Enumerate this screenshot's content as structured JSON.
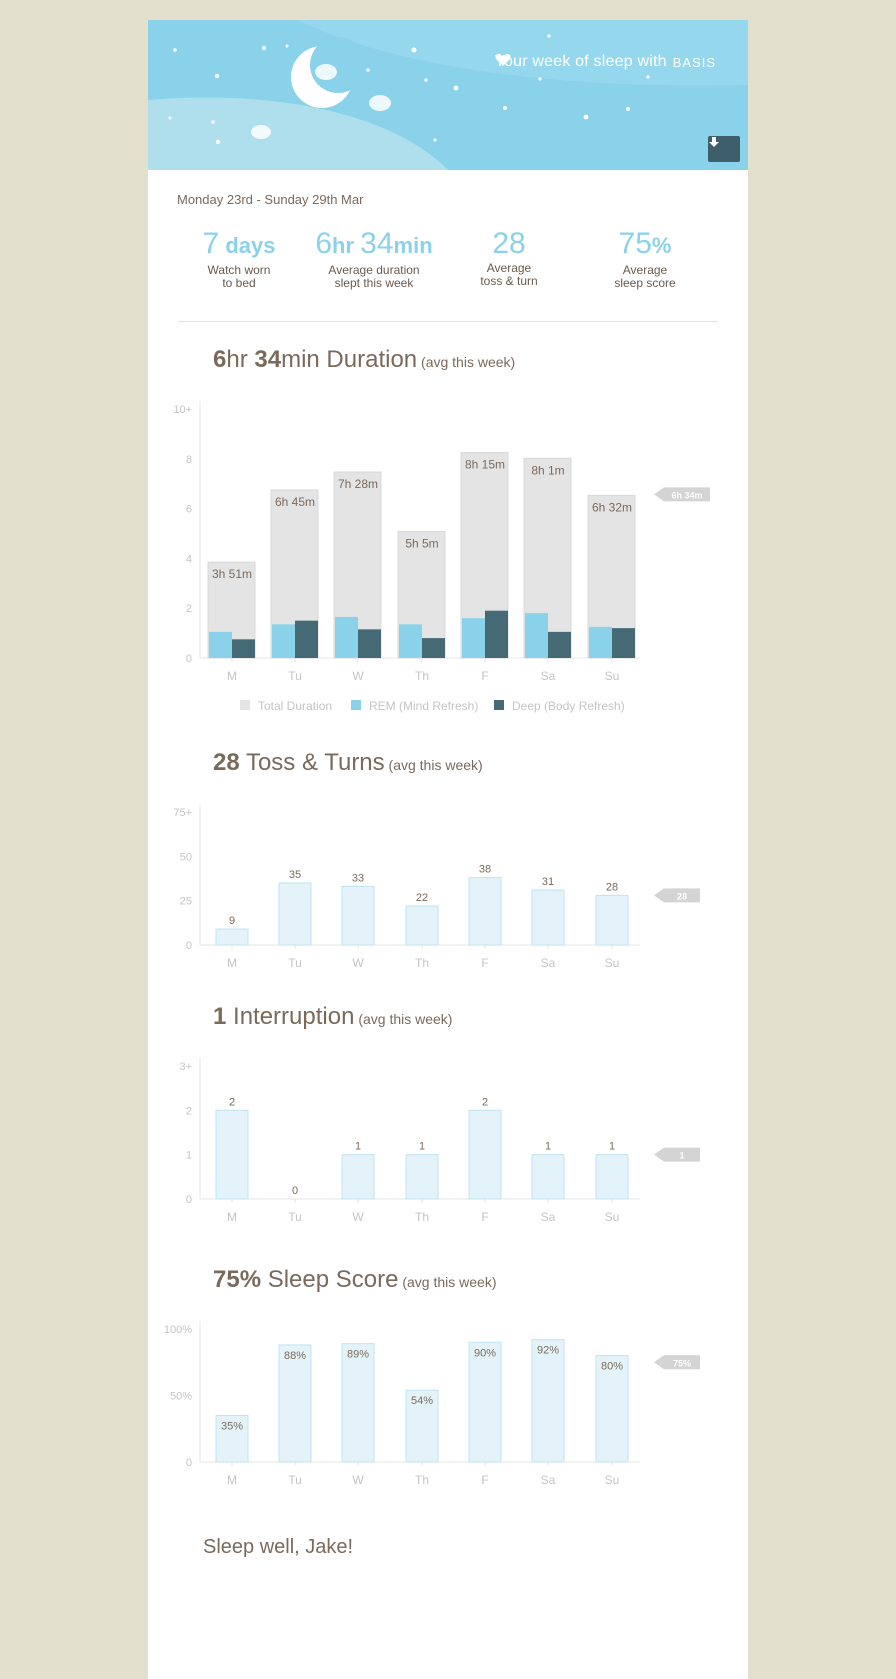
{
  "header": {
    "title": "Your week of sleep with",
    "brand": "BASIS"
  },
  "date_range": "Monday 23rd - Sunday 29th Mar",
  "stats": [
    {
      "value_num": "7",
      "value_unit": " days",
      "label_line1": "Watch worn",
      "label_line2": "to bed"
    },
    {
      "value_num": "6",
      "value_unit": "hr ",
      "value_num2": "34",
      "value_unit2": "min",
      "label_line1": "Average duration",
      "label_line2": "slept this week"
    },
    {
      "value_num": "28",
      "label_line1": "Average",
      "label_line2": "toss & turn"
    },
    {
      "value_num": "75",
      "value_unit": "%",
      "label_line1": "Average",
      "label_line2": "sleep score"
    }
  ],
  "sections": {
    "duration": {
      "num1": "6",
      "unit1": "hr ",
      "num2": "34",
      "unit2": "min",
      "name": " Duration",
      "sub": " (avg this week)"
    },
    "toss": {
      "num1": "28",
      "name": " Toss & Turns",
      "sub": " (avg this week)"
    },
    "interruption": {
      "num1": "1",
      "name": " Interruption",
      "sub": " (avg this week)"
    },
    "score": {
      "num1": "75%",
      "name": " Sleep Score",
      "sub": " (avg this week)"
    }
  },
  "colors": {
    "sky": "#89d2ea",
    "total": "#e4e4e4",
    "rem": "#89d2ea",
    "deep": "#456a76",
    "bar_light": "#e4f3f9",
    "bar_border": "#bfe4f2",
    "marker": "#d4d4d4"
  },
  "chart_data": [
    {
      "type": "bar",
      "title": "6hr 34min Duration (avg this week)",
      "categories": [
        "M",
        "Tu",
        "W",
        "Th",
        "F",
        "Sa",
        "Su"
      ],
      "ylim": [
        0,
        10
      ],
      "yticks": [
        "0",
        "2",
        "4",
        "6",
        "8",
        "10+"
      ],
      "series": [
        {
          "name": "Total Duration",
          "values": [
            3.85,
            6.75,
            7.47,
            5.08,
            8.25,
            8.02,
            6.53
          ],
          "labels": [
            "3h 51m",
            "6h 45m",
            "7h 28m",
            "5h 5m",
            "8h 15m",
            "8h 1m",
            "6h 32m"
          ]
        },
        {
          "name": "REM (Mind Refresh)",
          "values": [
            1.05,
            1.35,
            1.65,
            1.35,
            1.6,
            1.8,
            1.25
          ]
        },
        {
          "name": "Deep (Body Refresh)",
          "values": [
            0.75,
            1.5,
            1.15,
            0.8,
            1.9,
            1.05,
            1.2
          ]
        }
      ],
      "average": 6.57,
      "average_label": "6h 34m",
      "legend": "bottom"
    },
    {
      "type": "bar",
      "title": "28 Toss & Turns (avg this week)",
      "categories": [
        "M",
        "Tu",
        "W",
        "Th",
        "F",
        "Sa",
        "Su"
      ],
      "ylim": [
        0,
        75
      ],
      "yticks": [
        "0",
        "25",
        "50",
        "75+"
      ],
      "values": [
        9,
        35,
        33,
        22,
        38,
        31,
        28
      ],
      "labels": [
        "9",
        "35",
        "33",
        "22",
        "38",
        "31",
        "28"
      ],
      "average": 28,
      "average_label": "28"
    },
    {
      "type": "bar",
      "title": "1 Interruption (avg this week)",
      "categories": [
        "M",
        "Tu",
        "W",
        "Th",
        "F",
        "Sa",
        "Su"
      ],
      "ylim": [
        0,
        3
      ],
      "yticks": [
        "0",
        "1",
        "2",
        "3+"
      ],
      "values": [
        2,
        0,
        1,
        1,
        2,
        1,
        1
      ],
      "labels": [
        "2",
        "0",
        "1",
        "1",
        "2",
        "1",
        "1"
      ],
      "average": 1,
      "average_label": "1"
    },
    {
      "type": "bar",
      "title": "75% Sleep Score (avg this week)",
      "categories": [
        "M",
        "Tu",
        "W",
        "Th",
        "F",
        "Sa",
        "Su"
      ],
      "ylim": [
        0,
        100
      ],
      "yticks": [
        "0",
        "50%",
        "100%"
      ],
      "values": [
        35,
        88,
        89,
        54,
        90,
        92,
        80
      ],
      "labels": [
        "35%",
        "88%",
        "89%",
        "54%",
        "90%",
        "92%",
        "80%"
      ],
      "average": 75,
      "average_label": "75%"
    }
  ],
  "signoff": "Sleep well, Jake!"
}
